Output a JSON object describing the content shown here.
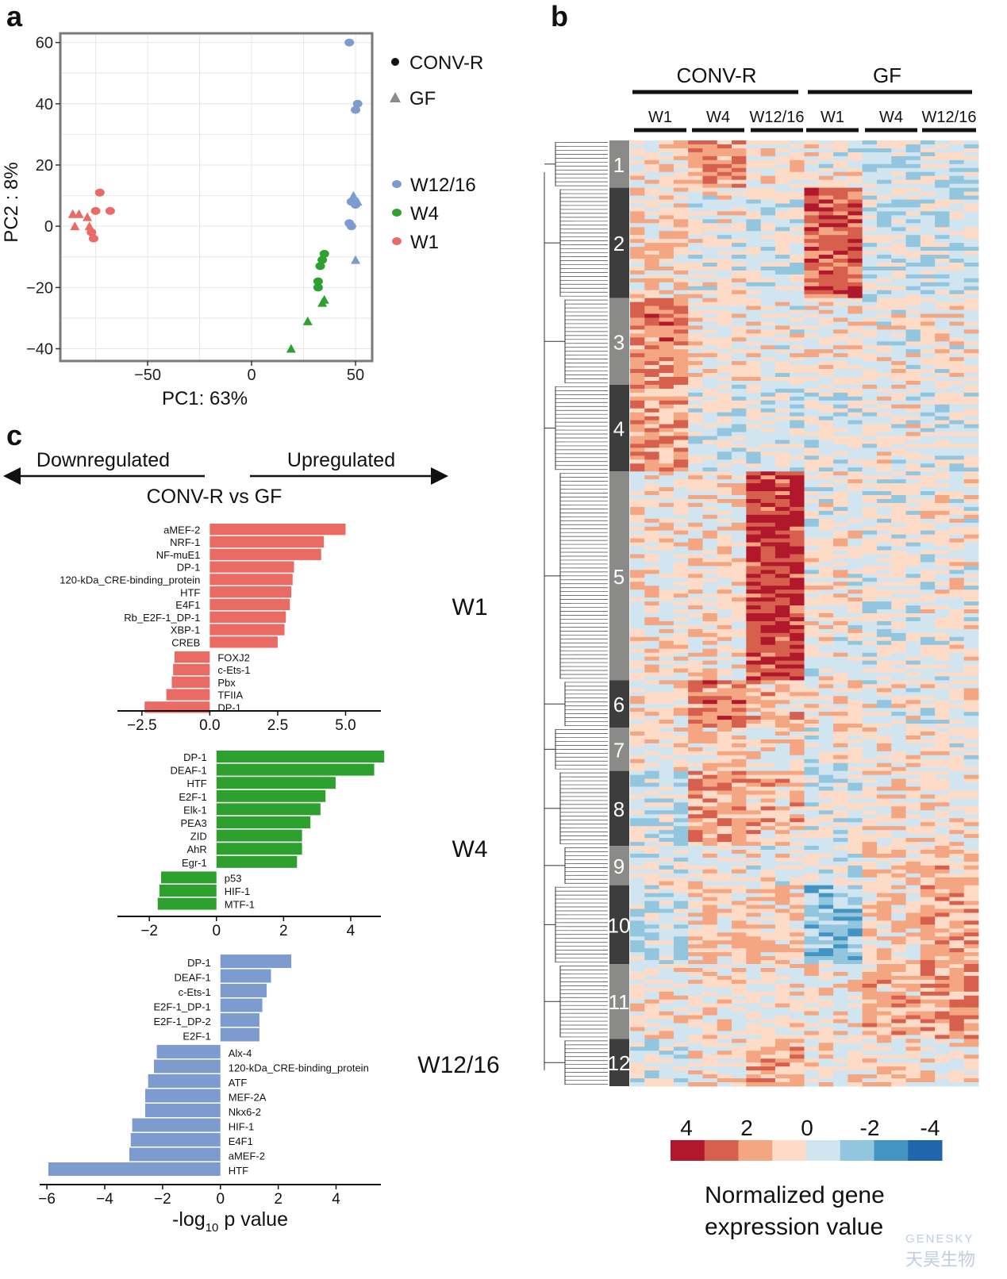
{
  "panels": {
    "a": "a",
    "b": "b",
    "c": "c"
  },
  "chart_data": [
    {
      "id": "pca",
      "type": "scatter",
      "xlabel": "PC1: 63%",
      "ylabel": "PC2 : 8%",
      "xlim": [
        -92,
        58
      ],
      "ylim": [
        -44,
        63
      ],
      "xticks": [
        -50,
        0,
        50
      ],
      "yticks": [
        60,
        40,
        20,
        0,
        -20,
        -40
      ],
      "grid": true,
      "shape_legend": [
        {
          "label": "CONV-R",
          "shape": "circle",
          "color": "#111111"
        },
        {
          "label": "GF",
          "shape": "triangle",
          "color": "#8c8c8c"
        }
      ],
      "series": [
        {
          "name": "W12/16",
          "color": "#7e9bd0",
          "points": [
            {
              "x": 47,
              "y": 60,
              "s": "c"
            },
            {
              "x": 51,
              "y": 40,
              "s": "c"
            },
            {
              "x": 50,
              "y": 38,
              "s": "c"
            },
            {
              "x": 49,
              "y": 10,
              "s": "t"
            },
            {
              "x": 51,
              "y": 8,
              "s": "t"
            },
            {
              "x": 50,
              "y": 7,
              "s": "c"
            },
            {
              "x": 48,
              "y": 8,
              "s": "c"
            },
            {
              "x": 47,
              "y": 1,
              "s": "c"
            },
            {
              "x": 48,
              "y": 0,
              "s": "c"
            },
            {
              "x": 50,
              "y": -11,
              "s": "t"
            }
          ]
        },
        {
          "name": "W4",
          "color": "#2ea02e",
          "points": [
            {
              "x": 35,
              "y": -9,
              "s": "c"
            },
            {
              "x": 34,
              "y": -11,
              "s": "c"
            },
            {
              "x": 33,
              "y": -13,
              "s": "c"
            },
            {
              "x": 32,
              "y": -18,
              "s": "c"
            },
            {
              "x": 32,
              "y": -20,
              "s": "c"
            },
            {
              "x": 34,
              "y": -25,
              "s": "t"
            },
            {
              "x": 35,
              "y": -24,
              "s": "t"
            },
            {
              "x": 27,
              "y": -31,
              "s": "t"
            },
            {
              "x": 19,
              "y": -40,
              "s": "t"
            }
          ]
        },
        {
          "name": "W1",
          "color": "#ea6b63",
          "points": [
            {
              "x": -73,
              "y": 11,
              "s": "c"
            },
            {
              "x": -68,
              "y": 5,
              "s": "c"
            },
            {
              "x": -75,
              "y": 5,
              "s": "c"
            },
            {
              "x": -86,
              "y": 4,
              "s": "t"
            },
            {
              "x": -83,
              "y": 4,
              "s": "t"
            },
            {
              "x": -85,
              "y": 0,
              "s": "t"
            },
            {
              "x": -79,
              "y": 3,
              "s": "t"
            },
            {
              "x": -78,
              "y": 0,
              "s": "t"
            },
            {
              "x": -77,
              "y": -2,
              "s": "c"
            },
            {
              "x": -76,
              "y": -4,
              "s": "c"
            }
          ]
        }
      ]
    },
    {
      "id": "heatmap",
      "type": "heatmap",
      "groups": [
        "CONV-R",
        "GF"
      ],
      "columns": [
        "W1",
        "W4",
        "W12/16",
        "W1",
        "W4",
        "W12/16"
      ],
      "clusters": [
        "1",
        "2",
        "3",
        "4",
        "5",
        "6",
        "7",
        "8",
        "9",
        "10",
        "11",
        "12"
      ],
      "cluster_rows": [
        12,
        28,
        22,
        22,
        53,
        12,
        11,
        19,
        10,
        20,
        19,
        12
      ],
      "cluster_means": [
        [
          0.3,
          1.6,
          0.2,
          0.1,
          -0.6,
          -0.5
        ],
        [
          0.6,
          0.0,
          -0.2,
          2.4,
          -0.4,
          -0.4
        ],
        [
          2.0,
          0.2,
          0.1,
          0.2,
          0.0,
          0.1
        ],
        [
          1.6,
          -0.2,
          -0.3,
          -0.2,
          0.0,
          -0.2
        ],
        [
          0.2,
          0.3,
          3.0,
          0.0,
          -0.2,
          0.0
        ],
        [
          0.1,
          2.0,
          1.0,
          0.2,
          0.0,
          0.0
        ],
        [
          0.2,
          0.8,
          0.3,
          0.0,
          0.2,
          0.1
        ],
        [
          -0.6,
          1.6,
          1.0,
          -0.3,
          0.3,
          0.2
        ],
        [
          0.0,
          0.2,
          0.1,
          -0.3,
          0.6,
          1.0
        ],
        [
          -0.7,
          0.6,
          0.8,
          -1.5,
          0.6,
          1.2
        ],
        [
          0.2,
          0.2,
          0.3,
          0.2,
          1.0,
          1.6
        ],
        [
          -0.2,
          0.2,
          1.2,
          0.2,
          0.4,
          0.4
        ]
      ],
      "legend": {
        "ticks": [
          "4",
          "2",
          "0",
          "-2",
          "-4"
        ],
        "colors": [
          "#b2182b",
          "#d6604d",
          "#f4a582",
          "#fddbc7",
          "#d1e5f0",
          "#92c5de",
          "#4393c3",
          "#2166ac"
        ],
        "title_line1": "Normalized gene",
        "title_line2": "expression value"
      }
    },
    {
      "id": "tf_bars",
      "type": "bar",
      "orientation": "horizontal",
      "header": {
        "left": "Downregulated",
        "right": "Upregulated",
        "middle": "CONV-R vs GF"
      },
      "xlabel_main": "-log",
      "xlabel_sub": "10",
      "xlabel_tail": " p value",
      "panels": [
        {
          "name": "W1",
          "color": "#ea6b63",
          "xlim": [
            -3.4,
            6.3
          ],
          "xticks": [
            "-2.5",
            "0.0",
            "2.5",
            "5.0"
          ],
          "xtick_values": [
            -2.5,
            0,
            2.5,
            5.0
          ],
          "up": [
            [
              "aMEF-2",
              5.0
            ],
            [
              "NRF-1",
              4.2
            ],
            [
              "NF-muE1",
              4.1
            ],
            [
              "DP-1",
              3.1
            ],
            [
              "120-kDa_CRE-binding_protein",
              3.05
            ],
            [
              "HTF",
              3.0
            ],
            [
              "E4F1",
              2.95
            ],
            [
              "Rb_E2F-1_DP-1",
              2.8
            ],
            [
              "XBP-1",
              2.75
            ],
            [
              "CREB",
              2.5
            ]
          ],
          "down": [
            [
              "FOXJ2",
              -1.3
            ],
            [
              "c-Ets-1",
              -1.35
            ],
            [
              "Pbx",
              -1.4
            ],
            [
              "TFIIA",
              -1.6
            ],
            [
              "DP-1",
              -2.4
            ]
          ]
        },
        {
          "name": "W4",
          "color": "#2ea02e",
          "xlim": [
            -2.95,
            4.9
          ],
          "xticks": [
            "-2",
            "0",
            "2",
            "4"
          ],
          "xtick_values": [
            -2,
            0,
            2,
            4
          ],
          "up": [
            [
              "DP-1",
              5.0
            ],
            [
              "DEAF-1",
              4.7
            ],
            [
              "HTF",
              3.55
            ],
            [
              "E2F-1",
              3.25
            ],
            [
              "Elk-1",
              3.1
            ],
            [
              "PEA3",
              2.8
            ],
            [
              "ZID",
              2.55
            ],
            [
              "AhR",
              2.55
            ],
            [
              "Egr-1",
              2.4
            ]
          ],
          "down": [
            [
              "p53",
              -1.65
            ],
            [
              "HIF-1",
              -1.7
            ],
            [
              "MTF-1",
              -1.75
            ]
          ]
        },
        {
          "name": "W12/16",
          "color": "#7e9bd0",
          "xlim": [
            -6.25,
            5.55
          ],
          "xticks": [
            "-6",
            "-4",
            "-2",
            "0",
            "2",
            "4"
          ],
          "xtick_values": [
            -6,
            -4,
            -2,
            0,
            2,
            4
          ],
          "up": [
            [
              "DP-1",
              2.45
            ],
            [
              "DEAF-1",
              1.75
            ],
            [
              "c-Ets-1",
              1.6
            ],
            [
              "E2F-1_DP-1",
              1.45
            ],
            [
              "E2F-1_DP-2",
              1.35
            ],
            [
              "E2F-1",
              1.35
            ]
          ],
          "down": [
            [
              "Alx-4",
              -2.2
            ],
            [
              "120-kDa_CRE-binding_protein",
              -2.3
            ],
            [
              "ATF",
              -2.5
            ],
            [
              "MEF-2A",
              -2.6
            ],
            [
              "Nkx6-2",
              -2.6
            ],
            [
              "HIF-1",
              -3.05
            ],
            [
              "E4F1",
              -3.1
            ],
            [
              "aMEF-2",
              -3.15
            ],
            [
              "HTF",
              -5.95
            ]
          ]
        }
      ]
    }
  ],
  "watermark": {
    "line1": "GENESKY",
    "line2": "天昊生物"
  }
}
